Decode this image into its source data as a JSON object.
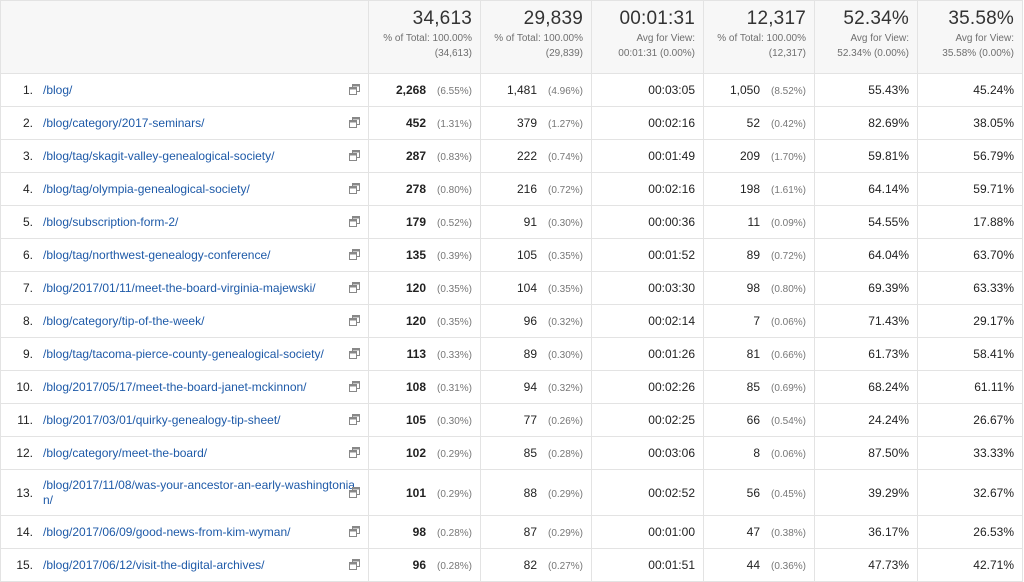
{
  "totals": [
    {
      "value": "34,613",
      "sub1": "% of Total: 100.00%",
      "sub2": "(34,613)"
    },
    {
      "value": "29,839",
      "sub1": "% of Total: 100.00%",
      "sub2": "(29,839)"
    },
    {
      "value": "00:01:31",
      "sub1": "Avg for View:",
      "sub2": "00:01:31 (0.00%)"
    },
    {
      "value": "12,317",
      "sub1": "% of Total: 100.00%",
      "sub2": "(12,317)"
    },
    {
      "value": "52.34%",
      "sub1": "Avg for View:",
      "sub2": "52.34% (0.00%)"
    },
    {
      "value": "35.58%",
      "sub1": "Avg for View:",
      "sub2": "35.58% (0.00%)"
    }
  ],
  "rows": [
    {
      "n": "1.",
      "page": "/blog/",
      "pv": "2,268",
      "pvp": "(6.55%)",
      "upv": "1,481",
      "upvp": "(4.96%)",
      "time": "00:03:05",
      "ent": "1,050",
      "entp": "(8.52%)",
      "bounce": "55.43%",
      "exit": "45.24%"
    },
    {
      "n": "2.",
      "page": "/blog/category/2017-seminars/",
      "pv": "452",
      "pvp": "(1.31%)",
      "upv": "379",
      "upvp": "(1.27%)",
      "time": "00:02:16",
      "ent": "52",
      "entp": "(0.42%)",
      "bounce": "82.69%",
      "exit": "38.05%"
    },
    {
      "n": "3.",
      "page": "/blog/tag/skagit-valley-genealogical-society/",
      "pv": "287",
      "pvp": "(0.83%)",
      "upv": "222",
      "upvp": "(0.74%)",
      "time": "00:01:49",
      "ent": "209",
      "entp": "(1.70%)",
      "bounce": "59.81%",
      "exit": "56.79%"
    },
    {
      "n": "4.",
      "page": "/blog/tag/olympia-genealogical-society/",
      "pv": "278",
      "pvp": "(0.80%)",
      "upv": "216",
      "upvp": "(0.72%)",
      "time": "00:02:16",
      "ent": "198",
      "entp": "(1.61%)",
      "bounce": "64.14%",
      "exit": "59.71%"
    },
    {
      "n": "5.",
      "page": "/blog/subscription-form-2/",
      "pv": "179",
      "pvp": "(0.52%)",
      "upv": "91",
      "upvp": "(0.30%)",
      "time": "00:00:36",
      "ent": "11",
      "entp": "(0.09%)",
      "bounce": "54.55%",
      "exit": "17.88%"
    },
    {
      "n": "6.",
      "page": "/blog/tag/northwest-genealogy-conference/",
      "pv": "135",
      "pvp": "(0.39%)",
      "upv": "105",
      "upvp": "(0.35%)",
      "time": "00:01:52",
      "ent": "89",
      "entp": "(0.72%)",
      "bounce": "64.04%",
      "exit": "63.70%"
    },
    {
      "n": "7.",
      "page": "/blog/2017/01/11/meet-the-board-virginia-majewski/",
      "pv": "120",
      "pvp": "(0.35%)",
      "upv": "104",
      "upvp": "(0.35%)",
      "time": "00:03:30",
      "ent": "98",
      "entp": "(0.80%)",
      "bounce": "69.39%",
      "exit": "63.33%"
    },
    {
      "n": "8.",
      "page": "/blog/category/tip-of-the-week/",
      "pv": "120",
      "pvp": "(0.35%)",
      "upv": "96",
      "upvp": "(0.32%)",
      "time": "00:02:14",
      "ent": "7",
      "entp": "(0.06%)",
      "bounce": "71.43%",
      "exit": "29.17%"
    },
    {
      "n": "9.",
      "page": "/blog/tag/tacoma-pierce-county-genealogical-society/",
      "pv": "113",
      "pvp": "(0.33%)",
      "upv": "89",
      "upvp": "(0.30%)",
      "time": "00:01:26",
      "ent": "81",
      "entp": "(0.66%)",
      "bounce": "61.73%",
      "exit": "58.41%"
    },
    {
      "n": "10.",
      "page": "/blog/2017/05/17/meet-the-board-janet-mckinnon/",
      "pv": "108",
      "pvp": "(0.31%)",
      "upv": "94",
      "upvp": "(0.32%)",
      "time": "00:02:26",
      "ent": "85",
      "entp": "(0.69%)",
      "bounce": "68.24%",
      "exit": "61.11%"
    },
    {
      "n": "11.",
      "page": "/blog/2017/03/01/quirky-genealogy-tip-sheet/",
      "pv": "105",
      "pvp": "(0.30%)",
      "upv": "77",
      "upvp": "(0.26%)",
      "time": "00:02:25",
      "ent": "66",
      "entp": "(0.54%)",
      "bounce": "24.24%",
      "exit": "26.67%"
    },
    {
      "n": "12.",
      "page": "/blog/category/meet-the-board/",
      "pv": "102",
      "pvp": "(0.29%)",
      "upv": "85",
      "upvp": "(0.28%)",
      "time": "00:03:06",
      "ent": "8",
      "entp": "(0.06%)",
      "bounce": "87.50%",
      "exit": "33.33%"
    },
    {
      "n": "13.",
      "page": "/blog/2017/11/08/was-your-ancestor-an-early-washingtonian/",
      "pv": "101",
      "pvp": "(0.29%)",
      "upv": "88",
      "upvp": "(0.29%)",
      "time": "00:02:52",
      "ent": "56",
      "entp": "(0.45%)",
      "bounce": "39.29%",
      "exit": "32.67%"
    },
    {
      "n": "14.",
      "page": "/blog/2017/06/09/good-news-from-kim-wyman/",
      "pv": "98",
      "pvp": "(0.28%)",
      "upv": "87",
      "upvp": "(0.29%)",
      "time": "00:01:00",
      "ent": "47",
      "entp": "(0.38%)",
      "bounce": "36.17%",
      "exit": "26.53%"
    },
    {
      "n": "15.",
      "page": "/blog/2017/06/12/visit-the-digital-archives/",
      "pv": "96",
      "pvp": "(0.28%)",
      "upv": "82",
      "upvp": "(0.27%)",
      "time": "00:01:51",
      "ent": "44",
      "entp": "(0.36%)",
      "bounce": "47.73%",
      "exit": "42.71%"
    }
  ],
  "icons": {
    "row_action": "open-in-new-window-icon"
  }
}
